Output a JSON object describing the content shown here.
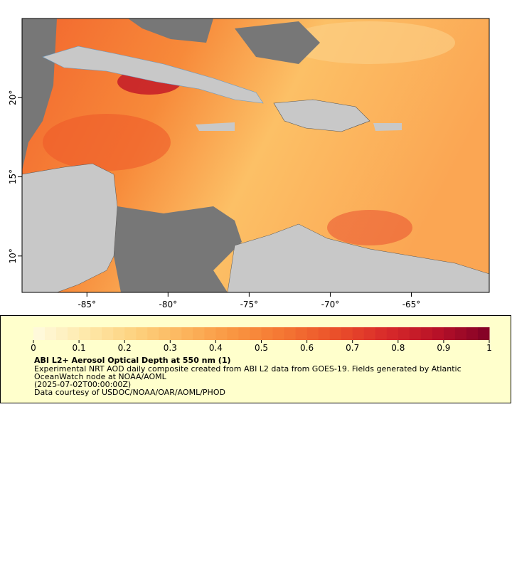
{
  "map": {
    "lon_range": [
      -89,
      -60.2
    ],
    "lat_range": [
      7.7,
      25
    ],
    "x_ticks": [
      {
        "value": -85,
        "label": "-85°"
      },
      {
        "value": -80,
        "label": "-80°"
      },
      {
        "value": -75,
        "label": "-75°"
      },
      {
        "value": -70,
        "label": "-70°"
      },
      {
        "value": -65,
        "label": "-65°"
      }
    ],
    "y_ticks": [
      {
        "value": 10,
        "label": "10°"
      },
      {
        "value": 15,
        "label": "15°"
      },
      {
        "value": 20,
        "label": "20°"
      }
    ]
  },
  "colorbar": {
    "range": [
      0,
      1
    ],
    "ticks": [
      0,
      {
        "value": 0.1,
        "label": "0.1"
      },
      {
        "value": 0.2,
        "label": "0.2"
      },
      {
        "value": 0.3,
        "label": "0.3"
      },
      {
        "value": 0.4,
        "label": "0.4"
      },
      {
        "value": 0.5,
        "label": "0.5"
      },
      {
        "value": 0.6,
        "label": "0.6"
      },
      {
        "value": 0.7,
        "label": "0.7"
      },
      {
        "value": 0.8,
        "label": "0.8"
      },
      {
        "value": 0.9,
        "label": "0.9"
      },
      1
    ],
    "colors": [
      "#fffbe0",
      "#fee9ac",
      "#fdd27f",
      "#fcb45c",
      "#f99440",
      "#f47432",
      "#ea4f2a",
      "#d8292a",
      "#b71128",
      "#800026"
    ]
  },
  "legend": {
    "title": "ABI L2+ Aerosol Optical Depth at 550 nm (1)",
    "lines": [
      "Experimental NRT AOD daily composite created from ABI L2 data from GOES-19. Fields generated by Atlantic",
      "OceanWatch node at NOAA/AOML",
      "(2025-07-02T00:00:00Z)",
      "Data courtesy of USDOC/NOAA/OAR/AOML/PHOD"
    ]
  }
}
